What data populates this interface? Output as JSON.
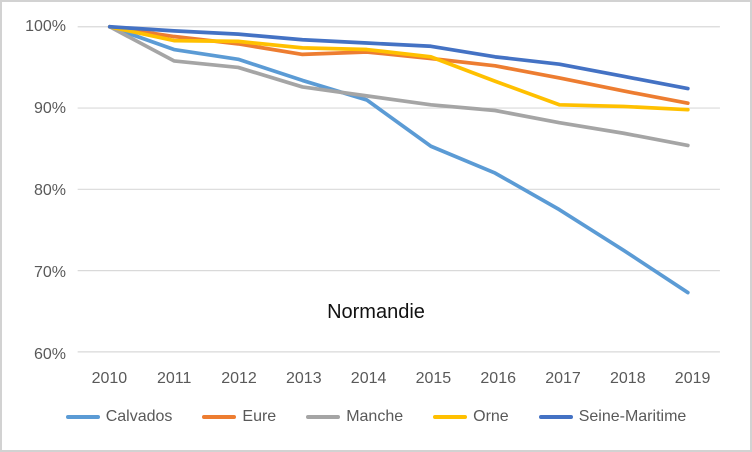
{
  "window": {
    "background": "#ffffff",
    "border_color": "#d2d2d2"
  },
  "chart_data": {
    "type": "line",
    "title": "Normandie",
    "xlabel": "",
    "ylabel": "",
    "categories": [
      "2010",
      "2011",
      "2012",
      "2013",
      "2014",
      "2015",
      "2016",
      "2017",
      "2018",
      "2019"
    ],
    "series": [
      {
        "name": "Calvados",
        "color": "#5B9BD5",
        "values": [
          100,
          97.2,
          96.0,
          93.4,
          91.0,
          85.3,
          82.0,
          77.5,
          72.5,
          67.3
        ]
      },
      {
        "name": "Eure",
        "color": "#ED7D31",
        "values": [
          100,
          98.8,
          97.9,
          96.6,
          96.9,
          96.1,
          95.2,
          93.7,
          92.1,
          90.6
        ]
      },
      {
        "name": "Manche",
        "color": "#A5A5A5",
        "values": [
          100,
          95.8,
          95.0,
          92.6,
          91.5,
          90.4,
          89.7,
          88.2,
          86.9,
          85.4
        ]
      },
      {
        "name": "Orne",
        "color": "#FFC000",
        "values": [
          100,
          98.3,
          98.2,
          97.4,
          97.2,
          96.3,
          93.3,
          90.4,
          90.2,
          89.8
        ]
      },
      {
        "name": "Seine-Maritime",
        "color": "#4472C4",
        "values": [
          100,
          99.5,
          99.1,
          98.4,
          98.0,
          97.6,
          96.3,
          95.4,
          93.9,
          92.4
        ]
      }
    ],
    "ylim": [
      60,
      100
    ],
    "yticks": [
      {
        "value": 100,
        "label": "100%"
      },
      {
        "value": 90,
        "label": "90%"
      },
      {
        "value": 80,
        "label": "80%"
      },
      {
        "value": 70,
        "label": "70%"
      },
      {
        "value": 60,
        "label": "60%"
      }
    ],
    "grid": "horizontal",
    "gridline_color": "#D9D9D9",
    "axis_text_color": "#595959",
    "legend_position": "bottom"
  }
}
